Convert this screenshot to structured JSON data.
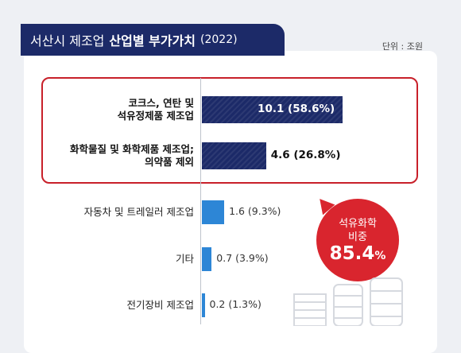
{
  "title": {
    "part1": "서산시 제조업",
    "part2": "산업별 부가가치",
    "year": "(2022)"
  },
  "unit_label": "단위 : 조원",
  "colors": {
    "highlight_bar": "#1c2a68",
    "normal_bar": "#2d86d6",
    "accent_red": "#d9252e"
  },
  "bubble": {
    "line1": "석유화학",
    "line2": "비중",
    "value": "85.4",
    "unit": "%"
  },
  "chart_data": {
    "type": "bar",
    "orientation": "horizontal",
    "title": "서산시 제조업 산업별 부가가치 (2022)",
    "unit": "조원",
    "categories": [
      [
        "코크스, 연탄 및",
        "석유정제품 제조업"
      ],
      [
        "화학물질 및 화학제품 제조업;",
        "의약품 제외"
      ],
      [
        "자동차 및 트레일러 제조업"
      ],
      [
        "기타"
      ],
      [
        "전기장비 제조업"
      ]
    ],
    "values": [
      10.1,
      4.6,
      1.6,
      0.7,
      0.2
    ],
    "shares_percent": [
      58.6,
      26.8,
      9.3,
      3.9,
      1.3
    ],
    "value_labels": [
      "10.1 (58.6%)",
      "4.6 (26.8%)",
      "1.6 (9.3%)",
      "0.7 (3.9%)",
      "0.2 (1.3%)"
    ],
    "highlighted": [
      true,
      true,
      false,
      false,
      false
    ],
    "xlim": [
      0,
      10.6
    ]
  }
}
